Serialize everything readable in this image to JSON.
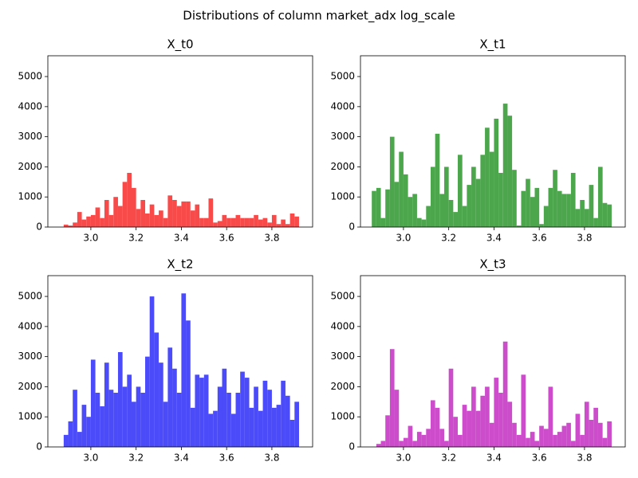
{
  "title": "Distributions of column market_adx log_scale",
  "chart_data": [
    {
      "type": "histogram",
      "title": "X_t0",
      "color": "#f94a4a",
      "bins": [
        2.86,
        2.88,
        2.9,
        2.92,
        2.94,
        2.96,
        2.98,
        3.0,
        3.02,
        3.04,
        3.06,
        3.08,
        3.1,
        3.12,
        3.14,
        3.16,
        3.18,
        3.2,
        3.22,
        3.24,
        3.26,
        3.28,
        3.3,
        3.32,
        3.34,
        3.36,
        3.38,
        3.4,
        3.42,
        3.44,
        3.46,
        3.48,
        3.5,
        3.52,
        3.54,
        3.56,
        3.58,
        3.6,
        3.62,
        3.64,
        3.66,
        3.68,
        3.7,
        3.72,
        3.74,
        3.76,
        3.78,
        3.8,
        3.82,
        3.84,
        3.86,
        3.88,
        3.9,
        3.92
      ],
      "values": [
        0,
        80,
        50,
        150,
        500,
        250,
        350,
        400,
        650,
        300,
        900,
        400,
        1000,
        700,
        1500,
        1800,
        1300,
        600,
        900,
        450,
        750,
        400,
        550,
        300,
        1050,
        900,
        700,
        850,
        850,
        550,
        750,
        300,
        300,
        950,
        150,
        200,
        400,
        300,
        300,
        400,
        300,
        300,
        300,
        400,
        250,
        300,
        150,
        400,
        100,
        250,
        100,
        450,
        350
      ],
      "xlim": [
        2.81,
        3.98
      ],
      "ylim": [
        0,
        5690
      ],
      "xticks": [
        {
          "value": 3,
          "label": "3.0"
        },
        3.2,
        3.4,
        3.6,
        3.8
      ],
      "yticks": [
        0,
        1000,
        2000,
        3000,
        4000,
        5000
      ]
    },
    {
      "type": "histogram",
      "title": "X_t1",
      "color": "#4ca64c",
      "bins": [
        2.86,
        2.88,
        2.9,
        2.92,
        2.94,
        2.96,
        2.98,
        3.0,
        3.02,
        3.04,
        3.06,
        3.08,
        3.1,
        3.12,
        3.14,
        3.16,
        3.18,
        3.2,
        3.22,
        3.24,
        3.26,
        3.28,
        3.3,
        3.32,
        3.34,
        3.36,
        3.38,
        3.4,
        3.42,
        3.44,
        3.46,
        3.48,
        3.5,
        3.52,
        3.54,
        3.56,
        3.58,
        3.6,
        3.62,
        3.64,
        3.66,
        3.68,
        3.7,
        3.72,
        3.74,
        3.76,
        3.78,
        3.8,
        3.82,
        3.84,
        3.86,
        3.88,
        3.9,
        3.92
      ],
      "values": [
        1200,
        1300,
        300,
        1250,
        3000,
        1500,
        2500,
        1750,
        1000,
        1100,
        300,
        250,
        700,
        2000,
        3100,
        1100,
        2000,
        900,
        500,
        2400,
        700,
        1400,
        2000,
        1600,
        2400,
        3300,
        2500,
        3600,
        1800,
        4100,
        3700,
        1900,
        50,
        1200,
        1600,
        1000,
        1300,
        100,
        700,
        1300,
        1900,
        1200,
        1100,
        1100,
        1800,
        600,
        900,
        600,
        1400,
        300,
        2000,
        800,
        750
      ],
      "xlim": [
        2.81,
        3.98
      ],
      "ylim": [
        0,
        5690
      ],
      "xticks": [
        {
          "value": 3,
          "label": "3.0"
        },
        3.2,
        3.4,
        3.6,
        3.8
      ],
      "yticks": [
        0,
        1000,
        2000,
        3000,
        4000,
        5000
      ]
    },
    {
      "type": "histogram",
      "title": "X_t2",
      "color": "#4b4bf9",
      "bins": [
        2.86,
        2.88,
        2.9,
        2.92,
        2.94,
        2.96,
        2.98,
        3.0,
        3.02,
        3.04,
        3.06,
        3.08,
        3.1,
        3.12,
        3.14,
        3.16,
        3.18,
        3.2,
        3.22,
        3.24,
        3.26,
        3.28,
        3.3,
        3.32,
        3.34,
        3.36,
        3.38,
        3.4,
        3.42,
        3.44,
        3.46,
        3.48,
        3.5,
        3.52,
        3.54,
        3.56,
        3.58,
        3.6,
        3.62,
        3.64,
        3.66,
        3.68,
        3.7,
        3.72,
        3.74,
        3.76,
        3.78,
        3.8,
        3.82,
        3.84,
        3.86,
        3.88,
        3.9,
        3.92
      ],
      "values": [
        0,
        400,
        850,
        1900,
        500,
        1400,
        1000,
        2900,
        1800,
        1350,
        2800,
        1900,
        1800,
        3150,
        2000,
        2400,
        1500,
        2000,
        1800,
        3000,
        5000,
        3800,
        2800,
        1500,
        3300,
        2600,
        1800,
        5100,
        4200,
        1300,
        2400,
        2300,
        2400,
        1100,
        1200,
        2000,
        2600,
        1800,
        1100,
        1800,
        2500,
        2300,
        1300,
        2000,
        1200,
        2200,
        1900,
        1300,
        1400,
        2200,
        1700,
        900,
        1500
      ],
      "xlim": [
        2.81,
        3.98
      ],
      "ylim": [
        0,
        5690
      ],
      "xticks": [
        {
          "value": 3,
          "label": "3.0"
        },
        3.2,
        3.4,
        3.6,
        3.8
      ],
      "yticks": [
        0,
        1000,
        2000,
        3000,
        4000,
        5000
      ]
    },
    {
      "type": "histogram",
      "title": "X_t3",
      "color": "#cc4ccc",
      "bins": [
        2.86,
        2.88,
        2.9,
        2.92,
        2.94,
        2.96,
        2.98,
        3.0,
        3.02,
        3.04,
        3.06,
        3.08,
        3.1,
        3.12,
        3.14,
        3.16,
        3.18,
        3.2,
        3.22,
        3.24,
        3.26,
        3.28,
        3.3,
        3.32,
        3.34,
        3.36,
        3.38,
        3.4,
        3.42,
        3.44,
        3.46,
        3.48,
        3.5,
        3.52,
        3.54,
        3.56,
        3.58,
        3.6,
        3.62,
        3.64,
        3.66,
        3.68,
        3.7,
        3.72,
        3.74,
        3.76,
        3.78,
        3.8,
        3.82,
        3.84,
        3.86,
        3.88,
        3.9,
        3.92
      ],
      "values": [
        0,
        100,
        200,
        1050,
        3250,
        1900,
        200,
        300,
        700,
        200,
        500,
        400,
        600,
        1550,
        1300,
        600,
        200,
        2600,
        1000,
        400,
        1400,
        1200,
        2000,
        1200,
        1700,
        2000,
        800,
        2300,
        1800,
        3500,
        1500,
        800,
        400,
        2400,
        300,
        500,
        200,
        700,
        600,
        2000,
        400,
        500,
        700,
        800,
        200,
        1100,
        400,
        1500,
        900,
        1300,
        800,
        300,
        850
      ],
      "xlim": [
        2.81,
        3.98
      ],
      "ylim": [
        0,
        5690
      ],
      "xticks": [
        {
          "value": 3,
          "label": "3.0"
        },
        3.2,
        3.4,
        3.6,
        3.8
      ],
      "yticks": [
        0,
        1000,
        2000,
        3000,
        4000,
        5000
      ]
    }
  ]
}
